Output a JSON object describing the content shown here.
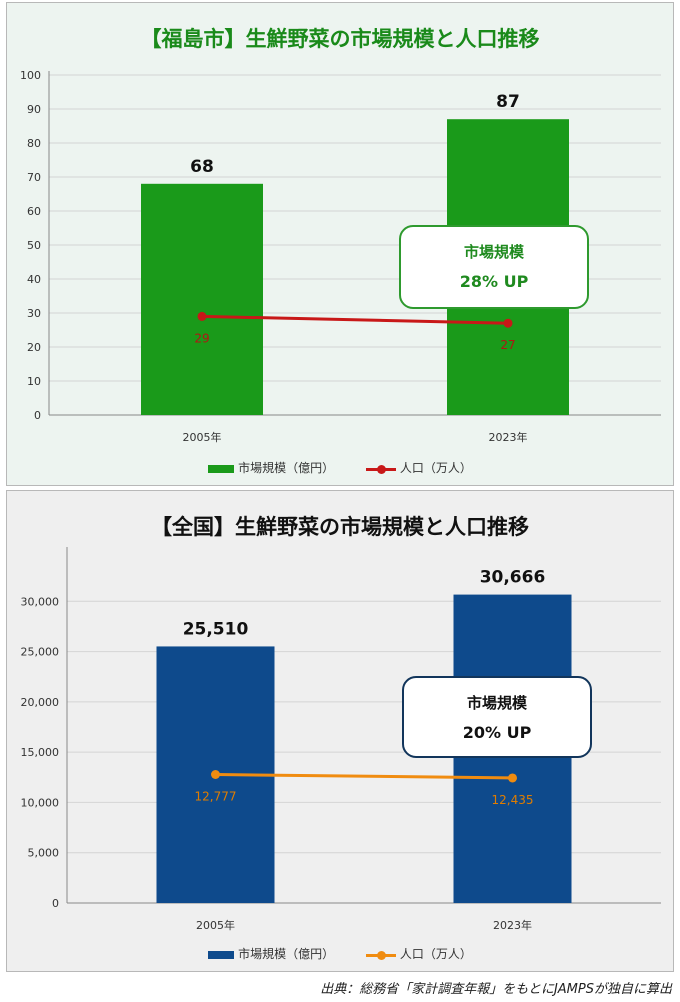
{
  "chart_data": [
    {
      "type": "bar",
      "title": "【福島市】生鮮野菜の市場規模と人口推移",
      "categories": [
        "2005年",
        "2023年"
      ],
      "series": [
        {
          "name": "市場規模（億円）",
          "kind": "bar",
          "values": [
            68,
            87
          ],
          "color": "#1a9a1a",
          "labels": [
            "68",
            "87"
          ]
        },
        {
          "name": "人口（万人）",
          "kind": "line",
          "values": [
            29,
            27
          ],
          "color": "#c81818",
          "labels": [
            "29",
            "27"
          ]
        }
      ],
      "ylim": [
        0,
        100
      ],
      "yticks": [
        "0",
        "10",
        "20",
        "30",
        "40",
        "50",
        "60",
        "70",
        "80",
        "90",
        "100"
      ],
      "grid": true,
      "legend": "bottom",
      "callout": {
        "label": "市場規模",
        "value": "28% UP"
      }
    },
    {
      "type": "bar",
      "title": "【全国】生鮮野菜の市場規模と人口推移",
      "categories": [
        "2005年",
        "2023年"
      ],
      "series": [
        {
          "name": "市場規模（億円）",
          "kind": "bar",
          "values": [
            25510,
            30666
          ],
          "color": "#0e4a8c",
          "labels": [
            "25,510",
            "30,666"
          ]
        },
        {
          "name": "人口（万人）",
          "kind": "line",
          "values": [
            12777,
            12435
          ],
          "color": "#f08c10",
          "labels": [
            "12,777",
            "12,435"
          ]
        }
      ],
      "ylim": [
        0,
        35000
      ],
      "yticks": [
        "0",
        "5,000",
        "10,000",
        "15,000",
        "20,000",
        "25,000",
        "30,000"
      ],
      "grid": true,
      "legend": "bottom",
      "callout": {
        "label": "市場規模",
        "value": "20% UP"
      }
    }
  ],
  "source": "出典：総務省「家計調査年報」をもとにJAMPSが独自に算出"
}
